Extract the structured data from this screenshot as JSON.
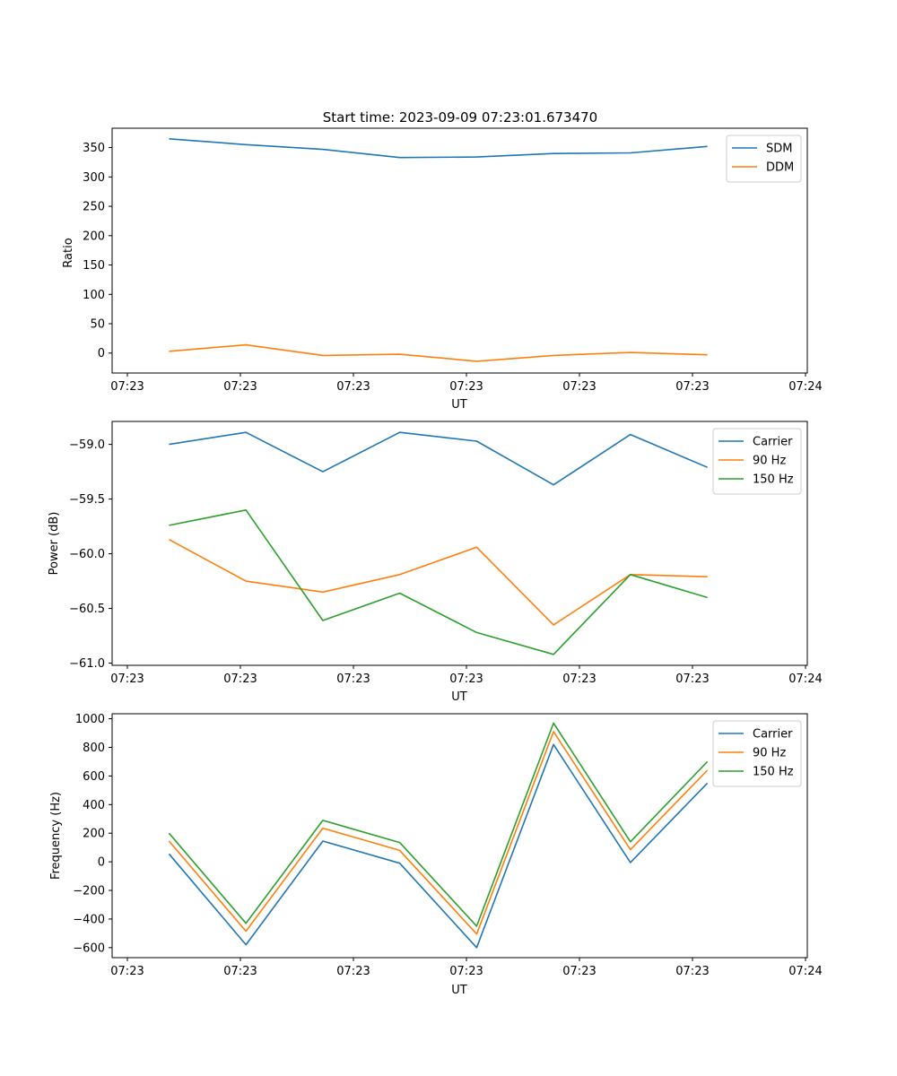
{
  "figure_title": "Start time: 2023-09-09 07:23:01.673470",
  "x_tick_labels": [
    "07:23",
    "07:23",
    "07:23",
    "07:23",
    "07:23",
    "07:23",
    "07:24"
  ],
  "colors": {
    "c1": "#1f77b4",
    "c2": "#ff7f0e",
    "c3": "#2ca02c"
  },
  "chart_data": [
    {
      "type": "line",
      "title": "Start time: 2023-09-09 07:23:01.673470",
      "xlabel": "UT",
      "ylabel": "Ratio",
      "x": [
        1,
        2,
        3,
        4,
        5,
        6,
        7,
        8
      ],
      "xlim": [
        0.26,
        9.3
      ],
      "ylim": [
        -34,
        383
      ],
      "yticks": [
        0,
        50,
        100,
        150,
        200,
        250,
        300,
        350
      ],
      "ytick_labels": [
        "0",
        "50",
        "100",
        "150",
        "200",
        "250",
        "300",
        "350"
      ],
      "legend_position": "top-right",
      "series": [
        {
          "name": "SDM",
          "color": "#1f77b4",
          "values": [
            365,
            355,
            347,
            333,
            334,
            340,
            341,
            352
          ]
        },
        {
          "name": "DDM",
          "color": "#ff7f0e",
          "values": [
            3,
            14,
            -4,
            -2,
            -14,
            -4,
            1,
            -3
          ]
        }
      ]
    },
    {
      "type": "line",
      "title": "",
      "xlabel": "UT",
      "ylabel": "Power (dB)",
      "x": [
        1,
        2,
        3,
        4,
        5,
        6,
        7,
        8
      ],
      "xlim": [
        0.26,
        9.3
      ],
      "ylim": [
        -61.02,
        -58.79
      ],
      "yticks": [
        -61.0,
        -60.5,
        -60.0,
        -59.5,
        -59.0
      ],
      "ytick_labels": [
        "−61.0",
        "−60.5",
        "−60.0",
        "−59.5",
        "−59.0"
      ],
      "legend_position": "top-right",
      "series": [
        {
          "name": "Carrier",
          "color": "#1f77b4",
          "values": [
            -59.0,
            -58.89,
            -59.25,
            -58.89,
            -58.97,
            -59.37,
            -58.91,
            -59.21
          ]
        },
        {
          "name": "90 Hz",
          "color": "#ff7f0e",
          "values": [
            -59.87,
            -60.25,
            -60.35,
            -60.19,
            -59.94,
            -60.65,
            -60.19,
            -60.21
          ]
        },
        {
          "name": "150 Hz",
          "color": "#2ca02c",
          "values": [
            -59.74,
            -59.6,
            -60.61,
            -60.36,
            -60.72,
            -60.92,
            -60.19,
            -60.4
          ]
        }
      ]
    },
    {
      "type": "line",
      "title": "",
      "xlabel": "UT",
      "ylabel": "Frequency (Hz)",
      "x": [
        1,
        2,
        3,
        4,
        5,
        6,
        7,
        8
      ],
      "xlim": [
        0.26,
        9.3
      ],
      "ylim": [
        -670,
        1035
      ],
      "yticks": [
        -600,
        -400,
        -200,
        0,
        200,
        400,
        600,
        800,
        1000
      ],
      "ytick_labels": [
        "−600",
        "−400",
        "−200",
        "0",
        "200",
        "400",
        "600",
        "800",
        "1000"
      ],
      "legend_position": "top-right",
      "series": [
        {
          "name": "Carrier",
          "color": "#1f77b4",
          "values": [
            55,
            -580,
            145,
            -10,
            -600,
            820,
            -5,
            550
          ]
        },
        {
          "name": "90 Hz",
          "color": "#ff7f0e",
          "values": [
            145,
            -485,
            235,
            80,
            -505,
            910,
            85,
            640
          ]
        },
        {
          "name": "150 Hz",
          "color": "#2ca02c",
          "values": [
            200,
            -430,
            290,
            135,
            -450,
            970,
            140,
            700
          ]
        }
      ]
    }
  ]
}
